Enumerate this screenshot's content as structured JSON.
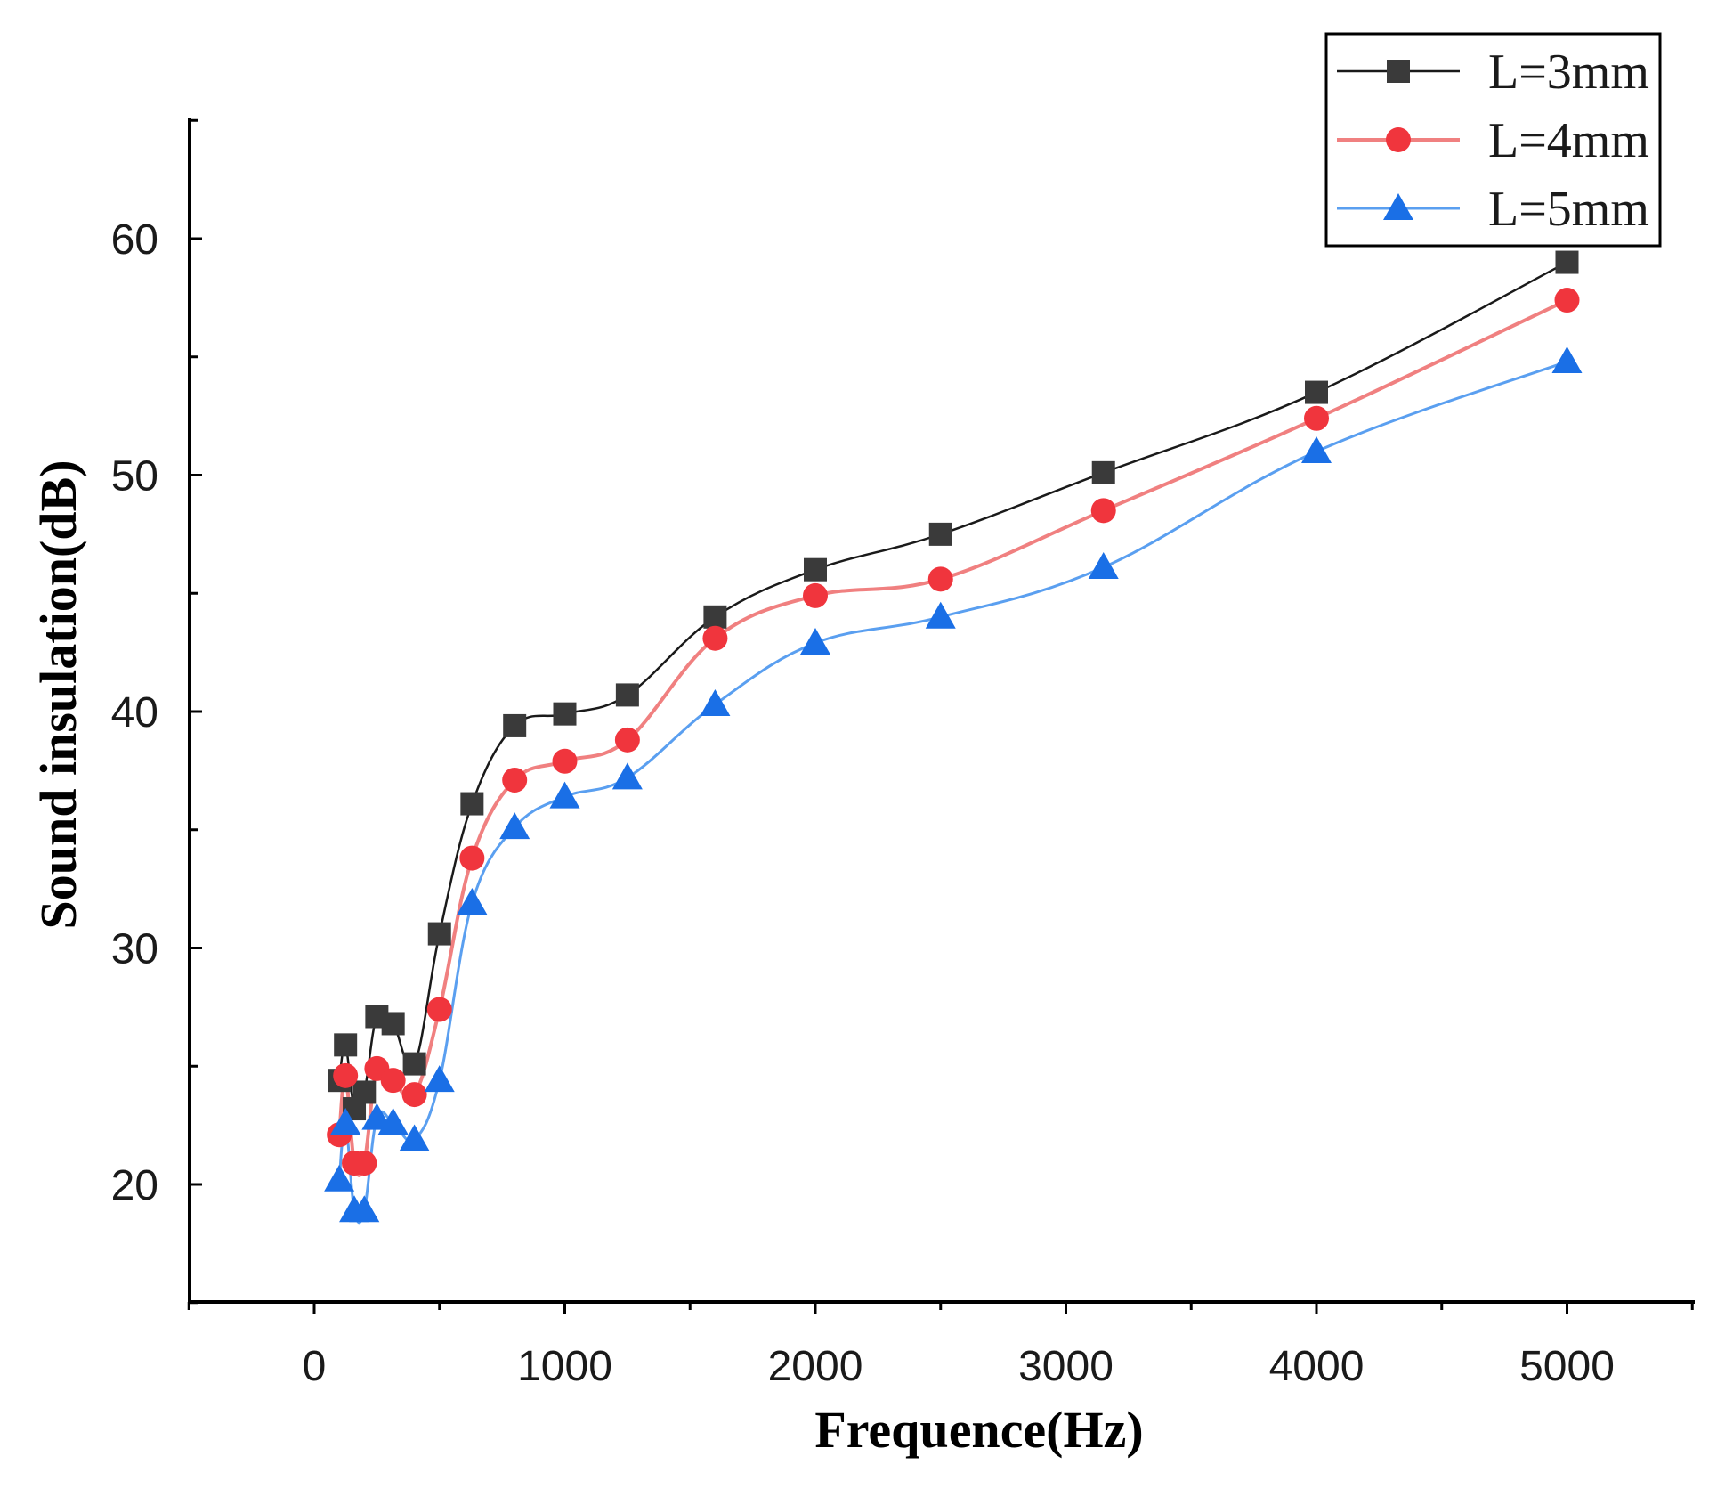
{
  "chart_data": {
    "type": "line",
    "title": "",
    "xlabel": "Frequence(Hz)",
    "ylabel": "Sound insulation(dB)",
    "xlim": [
      -500,
      5500
    ],
    "ylim": [
      15,
      65
    ],
    "xticks": [
      0,
      1000,
      2000,
      3000,
      4000,
      5000
    ],
    "yticks": [
      20,
      30,
      40,
      50,
      60
    ],
    "xtick_labels": [
      "0",
      "1000",
      "2000",
      "3000",
      "4000",
      "5000"
    ],
    "ytick_labels": [
      "20",
      "30",
      "40",
      "50",
      "60"
    ],
    "grid": false,
    "legend_position": "top-right",
    "x": [
      100,
      125,
      160,
      200,
      250,
      315,
      400,
      500,
      630,
      800,
      1000,
      1250,
      1600,
      2000,
      2500,
      3150,
      4000,
      5000
    ],
    "series": [
      {
        "name": "L=3mm",
        "color": "#3a3a3a",
        "line_color": "#1a1a1a",
        "marker": "square",
        "values": [
          24.4,
          25.9,
          23.2,
          23.9,
          27.1,
          26.8,
          25.1,
          30.6,
          36.1,
          39.4,
          39.9,
          40.7,
          44.0,
          46.0,
          47.5,
          50.1,
          53.5,
          59.0
        ]
      },
      {
        "name": "L=4mm",
        "color": "#f0353d",
        "line_color": "#f08080",
        "marker": "circle",
        "values": [
          22.1,
          24.6,
          20.9,
          20.9,
          24.9,
          24.4,
          23.8,
          27.4,
          33.8,
          37.1,
          37.9,
          38.8,
          43.1,
          44.9,
          45.6,
          48.5,
          52.4,
          57.4
        ]
      },
      {
        "name": "L=5mm",
        "color": "#1a6fe6",
        "line_color": "#5a9ff0",
        "marker": "triangle",
        "values": [
          20.2,
          22.6,
          18.9,
          18.9,
          22.8,
          22.6,
          21.9,
          24.4,
          31.9,
          35.1,
          36.4,
          37.2,
          40.3,
          42.9,
          44.0,
          46.1,
          51.0,
          54.8
        ]
      }
    ]
  }
}
